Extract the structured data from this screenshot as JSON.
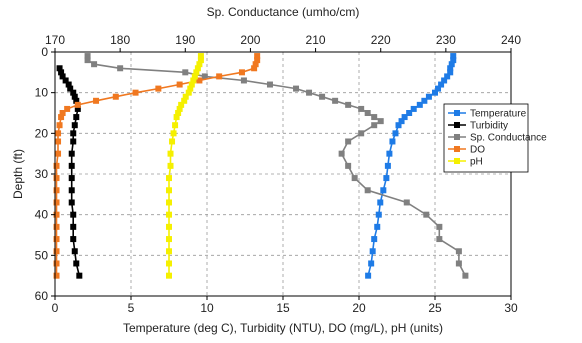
{
  "chart_data": {
    "type": "line",
    "orientation": "depth-profile",
    "xlabel_bottom": "Temperature (deg C), Turbidity (NTU), DO (mg/L), pH (units)",
    "xlabel_top": "Sp. Conductance (umho/cm)",
    "ylabel": "Depth (ft)",
    "xlim_bottom": [
      0,
      30
    ],
    "xticks_bottom": [
      "0",
      "5",
      "10",
      "15",
      "20",
      "25",
      "30"
    ],
    "xlim_top": [
      170,
      240
    ],
    "xticks_top": [
      "170",
      "180",
      "190",
      "200",
      "210",
      "220",
      "230",
      "240"
    ],
    "ylim": [
      0,
      60
    ],
    "yticks": [
      "0",
      "10",
      "20",
      "30",
      "40",
      "50",
      "60"
    ],
    "y_inverted": true,
    "grid": true,
    "legend_position": "right",
    "series": [
      {
        "name": "Temperature",
        "axis": "bottom",
        "color": "#1e7be6",
        "points": [
          [
            26.2,
            1
          ],
          [
            26.2,
            2
          ],
          [
            26.1,
            3
          ],
          [
            26.0,
            4
          ],
          [
            26.0,
            5
          ],
          [
            25.8,
            6
          ],
          [
            25.6,
            7
          ],
          [
            25.4,
            8
          ],
          [
            25.2,
            9
          ],
          [
            25.0,
            10
          ],
          [
            24.6,
            11
          ],
          [
            24.3,
            12
          ],
          [
            24.0,
            13
          ],
          [
            23.6,
            14
          ],
          [
            23.3,
            15
          ],
          [
            23.0,
            16
          ],
          [
            22.8,
            17
          ],
          [
            22.6,
            18
          ],
          [
            22.4,
            20
          ],
          [
            22.2,
            22
          ],
          [
            22.0,
            25
          ],
          [
            21.9,
            28
          ],
          [
            21.8,
            31
          ],
          [
            21.6,
            34
          ],
          [
            21.4,
            37
          ],
          [
            21.3,
            40
          ],
          [
            21.2,
            43
          ],
          [
            21.0,
            46
          ],
          [
            20.9,
            49
          ],
          [
            20.8,
            52
          ],
          [
            20.6,
            55
          ]
        ]
      },
      {
        "name": "Turbidity",
        "axis": "bottom",
        "color": "#000000",
        "points": [
          [
            0.3,
            4
          ],
          [
            0.4,
            5
          ],
          [
            0.5,
            6
          ],
          [
            0.7,
            7
          ],
          [
            0.9,
            8
          ],
          [
            1.0,
            9
          ],
          [
            1.2,
            10
          ],
          [
            1.3,
            11
          ],
          [
            1.4,
            12
          ],
          [
            1.5,
            14
          ],
          [
            1.4,
            16
          ],
          [
            1.3,
            18
          ],
          [
            1.2,
            20
          ],
          [
            1.2,
            22
          ],
          [
            1.1,
            25
          ],
          [
            1.1,
            28
          ],
          [
            1.1,
            31
          ],
          [
            1.1,
            34
          ],
          [
            1.1,
            37
          ],
          [
            1.2,
            40
          ],
          [
            1.2,
            43
          ],
          [
            1.2,
            46
          ],
          [
            1.3,
            49
          ],
          [
            1.4,
            52
          ],
          [
            1.6,
            55
          ]
        ]
      },
      {
        "name": "Sp. Conductance",
        "axis": "top",
        "color": "#808080",
        "points": [
          [
            175,
            1
          ],
          [
            175,
            2
          ],
          [
            176,
            3
          ],
          [
            180,
            4
          ],
          [
            190,
            5
          ],
          [
            193,
            6
          ],
          [
            199,
            7
          ],
          [
            203,
            8
          ],
          [
            207,
            9
          ],
          [
            209,
            10
          ],
          [
            211,
            11
          ],
          [
            213,
            12
          ],
          [
            215,
            13
          ],
          [
            217,
            14
          ],
          [
            218,
            15
          ],
          [
            219,
            16
          ],
          [
            220,
            17
          ],
          [
            219,
            18
          ],
          [
            217,
            20
          ],
          [
            215,
            22
          ],
          [
            214,
            25
          ],
          [
            215,
            28
          ],
          [
            216,
            31
          ],
          [
            218,
            34
          ],
          [
            224,
            37
          ],
          [
            227,
            40
          ],
          [
            229,
            43
          ],
          [
            229,
            46
          ],
          [
            232,
            49
          ],
          [
            232,
            52
          ],
          [
            233,
            55
          ]
        ]
      },
      {
        "name": "DO",
        "axis": "bottom",
        "color": "#f07820",
        "points": [
          [
            13.3,
            1
          ],
          [
            13.3,
            2
          ],
          [
            13.2,
            3
          ],
          [
            13.1,
            4
          ],
          [
            12.3,
            5
          ],
          [
            10.8,
            6
          ],
          [
            9.5,
            7
          ],
          [
            8.2,
            8
          ],
          [
            6.8,
            9
          ],
          [
            5.3,
            10
          ],
          [
            4.0,
            11
          ],
          [
            2.7,
            12
          ],
          [
            1.5,
            13
          ],
          [
            0.8,
            14
          ],
          [
            0.5,
            15
          ],
          [
            0.4,
            16
          ],
          [
            0.3,
            18
          ],
          [
            0.2,
            20
          ],
          [
            0.2,
            22
          ],
          [
            0.2,
            25
          ],
          [
            0.1,
            28
          ],
          [
            0.1,
            31
          ],
          [
            0.1,
            34
          ],
          [
            0.1,
            37
          ],
          [
            0.1,
            40
          ],
          [
            0.1,
            43
          ],
          [
            0.1,
            46
          ],
          [
            0.1,
            49
          ],
          [
            0.1,
            52
          ],
          [
            0.1,
            55
          ]
        ]
      },
      {
        "name": "pH",
        "axis": "bottom",
        "color": "#f5f000",
        "points": [
          [
            9.6,
            1
          ],
          [
            9.6,
            2
          ],
          [
            9.5,
            3
          ],
          [
            9.4,
            4
          ],
          [
            9.3,
            5
          ],
          [
            9.2,
            6
          ],
          [
            9.1,
            7
          ],
          [
            9.0,
            8
          ],
          [
            8.9,
            9
          ],
          [
            8.8,
            10
          ],
          [
            8.6,
            11
          ],
          [
            8.5,
            12
          ],
          [
            8.3,
            13
          ],
          [
            8.2,
            14
          ],
          [
            8.1,
            15
          ],
          [
            8.0,
            16
          ],
          [
            7.9,
            18
          ],
          [
            7.8,
            20
          ],
          [
            7.7,
            22
          ],
          [
            7.6,
            25
          ],
          [
            7.6,
            28
          ],
          [
            7.5,
            31
          ],
          [
            7.5,
            34
          ],
          [
            7.5,
            37
          ],
          [
            7.5,
            40
          ],
          [
            7.5,
            43
          ],
          [
            7.5,
            46
          ],
          [
            7.5,
            49
          ],
          [
            7.5,
            52
          ],
          [
            7.5,
            55
          ]
        ]
      }
    ]
  }
}
